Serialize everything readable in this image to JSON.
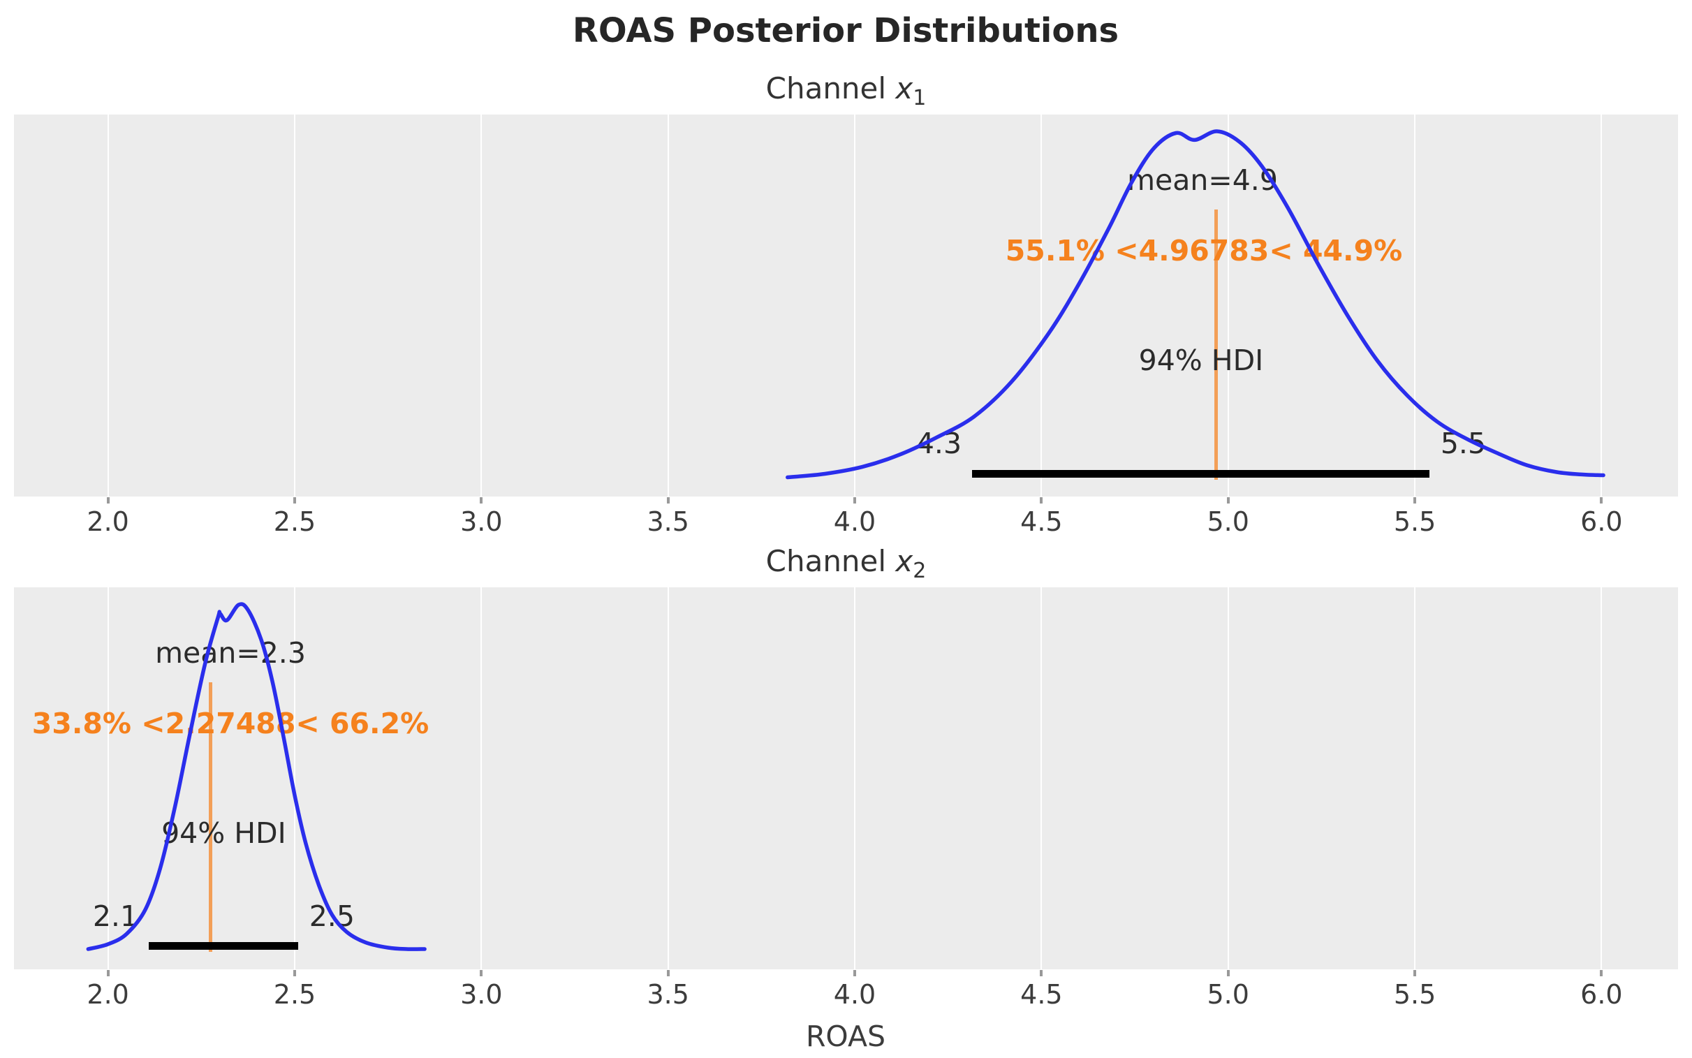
{
  "title": "ROAS Posterior Distributions",
  "xlabel": "ROAS",
  "x_axis": {
    "tick_labels": [
      "2.0",
      "2.5",
      "3.0",
      "3.5",
      "4.0",
      "4.5",
      "5.0",
      "5.5",
      "6.0"
    ],
    "tick_values": [
      2.0,
      2.5,
      3.0,
      3.5,
      4.0,
      4.5,
      5.0,
      5.5,
      6.0
    ],
    "range_shown": [
      1.75,
      6.21
    ],
    "grid": "on"
  },
  "colors": {
    "curve": "#2a2eec",
    "accent_orange": "#f5811d",
    "ref_line": "rgba(245,129,29,0.72)",
    "hdi_bar": "#000000",
    "plot_bg": "#ececec",
    "grid": "#ffffff",
    "text_dark": "#2b2b2b",
    "tick_text": "#3c3c3c"
  },
  "chart_data": [
    {
      "type": "area",
      "kind": "posterior-kde",
      "title": {
        "prefix": "Channel ",
        "variable": "x",
        "subscript": "1"
      },
      "mean": 4.9,
      "mean_label": "mean=4.9",
      "ref_value": 4.96783,
      "ref_label": "55.1% <4.96783< 44.9%",
      "pct_below_ref": "55.1%",
      "pct_above_ref": "44.9%",
      "hdi_probability": "94%",
      "hdi_label": "94% HDI",
      "hdi_lower_label": "4.3",
      "hdi_upper_label": "5.5",
      "hdi_interval": [
        4.315,
        5.54
      ],
      "x_range": [
        3.82,
        6.005
      ],
      "kde": [
        [
          3.82,
          0.005
        ],
        [
          3.92,
          0.015
        ],
        [
          4.02,
          0.035
        ],
        [
          4.12,
          0.07
        ],
        [
          4.22,
          0.12
        ],
        [
          4.32,
          0.18
        ],
        [
          4.42,
          0.28
        ],
        [
          4.52,
          0.42
        ],
        [
          4.6,
          0.56
        ],
        [
          4.68,
          0.72
        ],
        [
          4.74,
          0.85
        ],
        [
          4.8,
          0.95
        ],
        [
          4.86,
          0.995
        ],
        [
          4.91,
          0.975
        ],
        [
          4.97,
          1.0
        ],
        [
          5.03,
          0.97
        ],
        [
          5.09,
          0.9
        ],
        [
          5.16,
          0.78
        ],
        [
          5.24,
          0.62
        ],
        [
          5.32,
          0.47
        ],
        [
          5.4,
          0.34
        ],
        [
          5.48,
          0.24
        ],
        [
          5.56,
          0.165
        ],
        [
          5.64,
          0.115
        ],
        [
          5.72,
          0.075
        ],
        [
          5.8,
          0.04
        ],
        [
          5.88,
          0.02
        ],
        [
          5.95,
          0.013
        ],
        [
          6.005,
          0.011
        ]
      ]
    },
    {
      "type": "area",
      "kind": "posterior-kde",
      "title": {
        "prefix": "Channel ",
        "variable": "x",
        "subscript": "2"
      },
      "mean": 2.3,
      "mean_label": "mean=2.3",
      "ref_value": 2.27488,
      "ref_label": "33.8% <2.27488< 66.2%",
      "pct_below_ref": "33.8%",
      "pct_above_ref": "66.2%",
      "hdi_probability": "94%",
      "hdi_label": "94% HDI",
      "hdi_lower_label": "2.1",
      "hdi_upper_label": "2.5",
      "hdi_interval": [
        2.11,
        2.51
      ],
      "x_range": [
        1.947,
        2.848
      ],
      "kde": [
        [
          1.947,
          0.006
        ],
        [
          2.0,
          0.02
        ],
        [
          2.05,
          0.05
        ],
        [
          2.1,
          0.12
        ],
        [
          2.14,
          0.24
        ],
        [
          2.18,
          0.42
        ],
        [
          2.22,
          0.63
        ],
        [
          2.26,
          0.83
        ],
        [
          2.295,
          0.965
        ],
        [
          2.3,
          0.975
        ],
        [
          2.318,
          0.955
        ],
        [
          2.35,
          1.0
        ],
        [
          2.375,
          0.985
        ],
        [
          2.41,
          0.9
        ],
        [
          2.44,
          0.78
        ],
        [
          2.47,
          0.62
        ],
        [
          2.5,
          0.45
        ],
        [
          2.53,
          0.31
        ],
        [
          2.565,
          0.19
        ],
        [
          2.6,
          0.105
        ],
        [
          2.64,
          0.055
        ],
        [
          2.69,
          0.025
        ],
        [
          2.75,
          0.01
        ],
        [
          2.8,
          0.006
        ],
        [
          2.848,
          0.006
        ]
      ]
    }
  ]
}
